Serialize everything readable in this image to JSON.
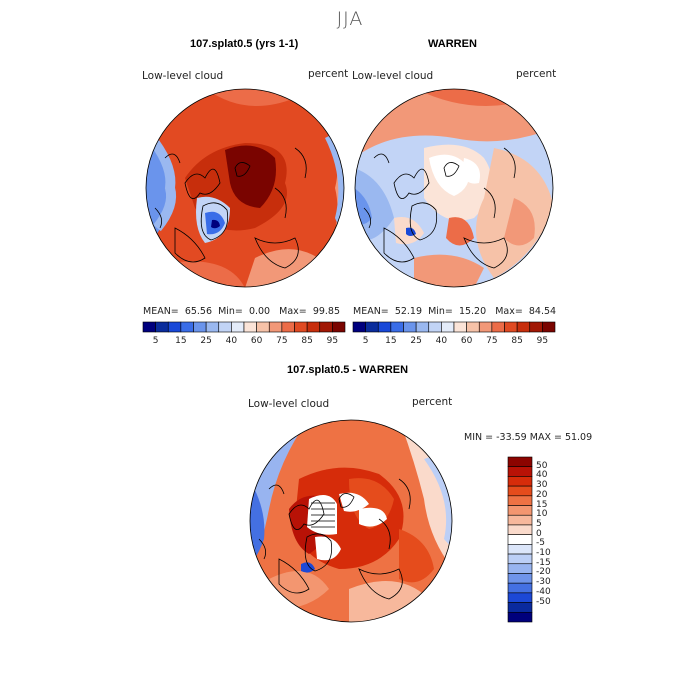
{
  "season": "JJA",
  "panels": [
    {
      "title": "107.splat0.5 (yrs 1-1)",
      "field_label": "Low-level cloud",
      "units": "percent",
      "stats": {
        "mean_label": "MEAN=",
        "mean": "65.56",
        "min_label": "Min=",
        "min": "0.00",
        "max_label": "Max=",
        "max": "99.85"
      }
    },
    {
      "title": "WARREN",
      "field_label": "Low-level cloud",
      "units": "percent",
      "stats": {
        "mean_label": "MEAN=",
        "mean": "52.19",
        "min_label": "Min=",
        "min": "15.20",
        "max_label": "Max=",
        "max": "84.54"
      }
    },
    {
      "title": "107.splat0.5 - WARREN",
      "field_label": "Low-level cloud",
      "units": "percent",
      "stats_line": "MIN = -33.59 MAX =  51.09"
    }
  ],
  "colorbar_top": {
    "tick_labels": [
      "5",
      "15",
      "25",
      "40",
      "60",
      "75",
      "85",
      "95"
    ],
    "colors": [
      "#00007e",
      "#0a2c9c",
      "#1848d8",
      "#3a6de8",
      "#6a94ec",
      "#9ab8f0",
      "#c2d4f6",
      "#e4ecfa",
      "#fbe4d8",
      "#f6c2a8",
      "#f29878",
      "#ec6c48",
      "#e04a22",
      "#c72e0c",
      "#a11704",
      "#7a0400"
    ]
  },
  "colorbar_diff": {
    "tick_labels": [
      "50",
      "40",
      "30",
      "20",
      "15",
      "10",
      "5",
      "0",
      "-5",
      "-10",
      "-15",
      "-20",
      "-30",
      "-40",
      "-50"
    ],
    "colors": [
      "#8c0400",
      "#b81206",
      "#d62c0a",
      "#e54c1c",
      "#ee7244",
      "#f39670",
      "#f7b89c",
      "#fadacb",
      "#ffffff",
      "#dce6fa",
      "#bccff6",
      "#98b4f0",
      "#6f94ea",
      "#4470e2",
      "#1c48d6",
      "#0a2a9e",
      "#00007c"
    ]
  },
  "chart_data": {
    "type": "heatmap",
    "title": "JJA",
    "projection": "north polar stereographic",
    "maps": [
      {
        "name": "107.splat0.5 (yrs 1-1)",
        "variable": "Low-level cloud",
        "units": "percent",
        "mean": 65.56,
        "min": 0.0,
        "max": 99.85,
        "contour_levels": [
          5,
          10,
          15,
          20,
          25,
          30,
          40,
          50,
          60,
          70,
          75,
          80,
          85,
          90,
          95
        ]
      },
      {
        "name": "WARREN",
        "variable": "Low-level cloud",
        "units": "percent",
        "mean": 52.19,
        "min": 15.2,
        "max": 84.54,
        "contour_levels": [
          5,
          10,
          15,
          20,
          25,
          30,
          40,
          50,
          60,
          70,
          75,
          80,
          85,
          90,
          95
        ]
      },
      {
        "name": "107.splat0.5 - WARREN",
        "variable": "Low-level cloud",
        "units": "percent",
        "min": -33.59,
        "max": 51.09,
        "contour_levels": [
          -50,
          -40,
          -30,
          -20,
          -15,
          -10,
          -5,
          0,
          5,
          10,
          15,
          20,
          30,
          40,
          50
        ]
      }
    ]
  }
}
